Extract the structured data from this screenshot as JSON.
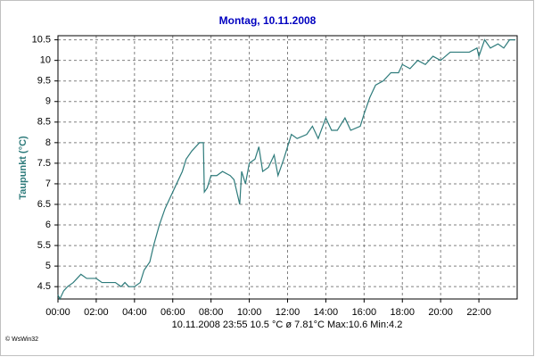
{
  "chart_data": {
    "type": "line",
    "title": "Montag, 10.11.2008",
    "y_label": "Taupunkt  (°C)",
    "footer": "10.11.2008  23:55   10.5 °C   ø 7.81°C  Max:10.6  Min:4.2",
    "credit": "© WsWin32",
    "color": "#2e7b7b",
    "grid": true,
    "xlim": [
      0,
      24
    ],
    "ylim": [
      4.2,
      10.6
    ],
    "xticks": [
      {
        "value": 0,
        "label": "00:00"
      },
      {
        "value": 2,
        "label": "02:00"
      },
      {
        "value": 4,
        "label": "04:00"
      },
      {
        "value": 6,
        "label": "06:00"
      },
      {
        "value": 8,
        "label": "08:00"
      },
      {
        "value": 10,
        "label": "10:00"
      },
      {
        "value": 12,
        "label": "12:00"
      },
      {
        "value": 14,
        "label": "14:00"
      },
      {
        "value": 16,
        "label": "16:00"
      },
      {
        "value": 18,
        "label": "18:00"
      },
      {
        "value": 20,
        "label": "20:00"
      },
      {
        "value": 22,
        "label": "22:00"
      }
    ],
    "yticks": [
      4.5,
      5,
      5.5,
      6,
      6.5,
      7,
      7.5,
      8,
      8.5,
      9,
      9.5,
      10,
      10.5
    ],
    "x": [
      0,
      0.1,
      0.3,
      0.5,
      0.8,
      1.0,
      1.2,
      1.5,
      2,
      2.3,
      2.5,
      3,
      3.3,
      3.5,
      3.7,
      4,
      4.3,
      4.5,
      4.8,
      5,
      5.3,
      5.6,
      5.9,
      6.2,
      6.5,
      6.7,
      7,
      7.2,
      7.4,
      7.6,
      7.65,
      7.8,
      8.0,
      8.3,
      8.6,
      9,
      9.2,
      9.4,
      9.5,
      9.6,
      9.8,
      10,
      10.3,
      10.5,
      10.7,
      11,
      11.3,
      11.5,
      11.8,
      12,
      12.2,
      12.5,
      13,
      13.3,
      13.6,
      14,
      14.3,
      14.6,
      15,
      15.3,
      15.8,
      16,
      16.3,
      16.6,
      17,
      17.4,
      17.8,
      18,
      18.4,
      18.8,
      19.2,
      19.6,
      20,
      20.5,
      21,
      21.5,
      21.9,
      22,
      22.3,
      22.6,
      23,
      23.3,
      23.6,
      23.9
    ],
    "values": [
      4.3,
      4.2,
      4.4,
      4.5,
      4.6,
      4.7,
      4.8,
      4.7,
      4.7,
      4.6,
      4.6,
      4.6,
      4.5,
      4.6,
      4.5,
      4.5,
      4.6,
      4.9,
      5.1,
      5.5,
      6.0,
      6.4,
      6.7,
      7.0,
      7.3,
      7.6,
      7.8,
      7.9,
      8.0,
      8.0,
      6.8,
      6.9,
      7.2,
      7.2,
      7.3,
      7.2,
      7.1,
      6.7,
      6.5,
      7.3,
      7.0,
      7.5,
      7.6,
      7.9,
      7.3,
      7.4,
      7.7,
      7.2,
      7.6,
      7.9,
      8.2,
      8.1,
      8.2,
      8.4,
      8.1,
      8.6,
      8.3,
      8.3,
      8.6,
      8.3,
      8.4,
      8.7,
      9.1,
      9.4,
      9.5,
      9.7,
      9.7,
      9.9,
      9.8,
      10.0,
      9.9,
      10.1,
      10.0,
      10.2,
      10.2,
      10.2,
      10.3,
      10.1,
      10.5,
      10.3,
      10.4,
      10.3,
      10.5,
      10.5
    ]
  }
}
